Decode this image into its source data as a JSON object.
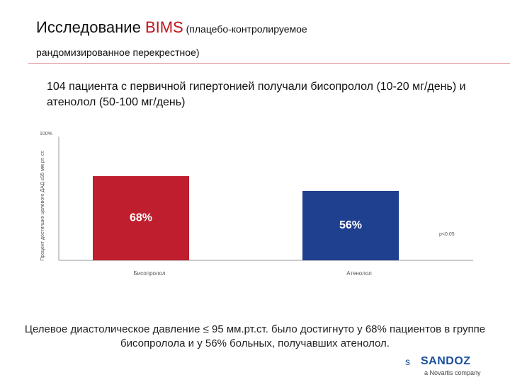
{
  "header": {
    "title_main": "Исследование ",
    "title_accent": "BIMS",
    "title_sub": " (плацебо-контролируемое",
    "title_sub_line2": "рандомизированное перекрестное)"
  },
  "intro": "104 пациента с первичной гипертонией получали бисопролол (10-20 мг/день) и атенолол (50-100 мг/день)",
  "chart_data": {
    "type": "bar",
    "categories": [
      "Бисопролол",
      "Атенолол"
    ],
    "values": [
      68,
      56
    ],
    "value_labels": [
      "68%",
      "56%"
    ],
    "colors": [
      "#be1e2d",
      "#1f3f8f"
    ],
    "ylim": [
      0,
      100
    ],
    "ytick_label": "100%",
    "ylabel": "Процент достигших целевого ДАД ≤95 мм рт. ст.",
    "annotation": "p<0.05"
  },
  "conclusion": "Целевое диастолическое давление ≤ 95 мм.рт.ст. было достигнуто у 68% пациентов в группе бисопролола и у 56% больных, получавших атенолол.",
  "logo": {
    "mark": "ѕ",
    "name": "SANDOZ",
    "tagline": "a Novartis company"
  }
}
